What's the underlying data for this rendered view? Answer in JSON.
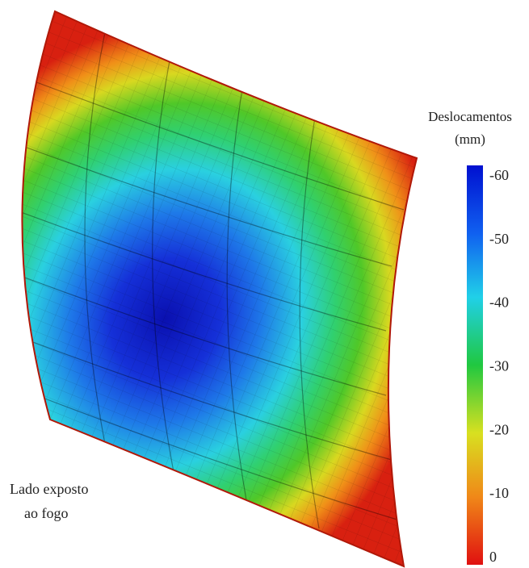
{
  "colorbar": {
    "title": "Deslocamentos",
    "unit": "(mm)",
    "ticks": [
      -60,
      -50,
      -40,
      -30,
      -20,
      -10,
      0
    ]
  },
  "annotation": [
    "Lado exposto",
    "ao fogo"
  ]
}
